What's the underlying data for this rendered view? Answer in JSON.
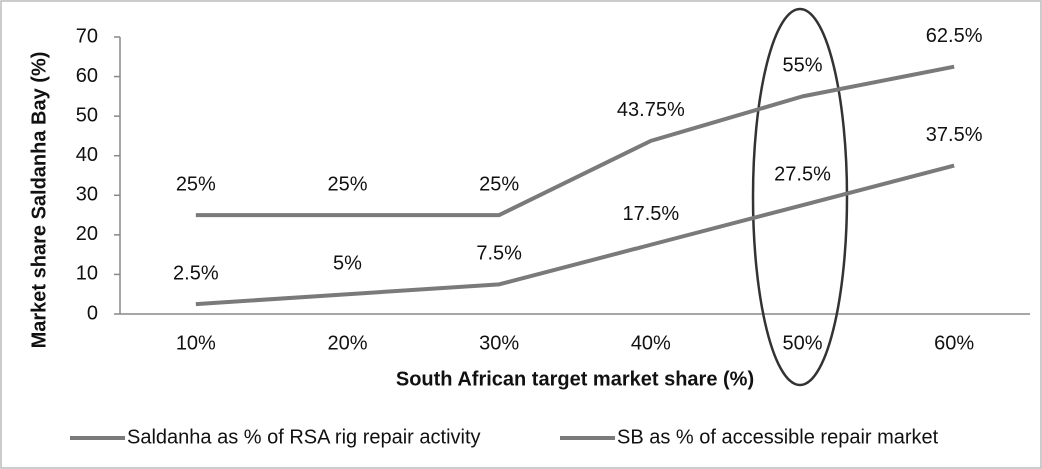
{
  "chart_data": {
    "type": "line",
    "x_label": "South African target market share (%)",
    "y_label": "Market share Saldanha Bay (%)",
    "categories": [
      "10%",
      "20%",
      "30%",
      "40%",
      "50%",
      "60%"
    ],
    "series": [
      {
        "name": "Saldanha as % of RSA rig repair activity",
        "color": "#7a7a7a",
        "values": [
          2.5,
          5,
          7.5,
          17.5,
          27.5,
          37.5
        ],
        "value_labels": [
          "2.5%",
          "5%",
          "7.5%",
          "17.5%",
          "27.5%",
          "37.5%"
        ]
      },
      {
        "name": "SB as % of accessible repair market",
        "color": "#7a7a7a",
        "values": [
          25,
          25,
          25,
          43.75,
          55,
          62.5
        ],
        "value_labels": [
          "25%",
          "25%",
          "25%",
          "43.75%",
          "55%",
          "62.5%"
        ]
      }
    ],
    "ylim": [
      0,
      70
    ],
    "yticks": [
      0,
      10,
      20,
      30,
      40,
      50,
      60,
      70
    ],
    "grid": false,
    "legend": "bottom"
  }
}
